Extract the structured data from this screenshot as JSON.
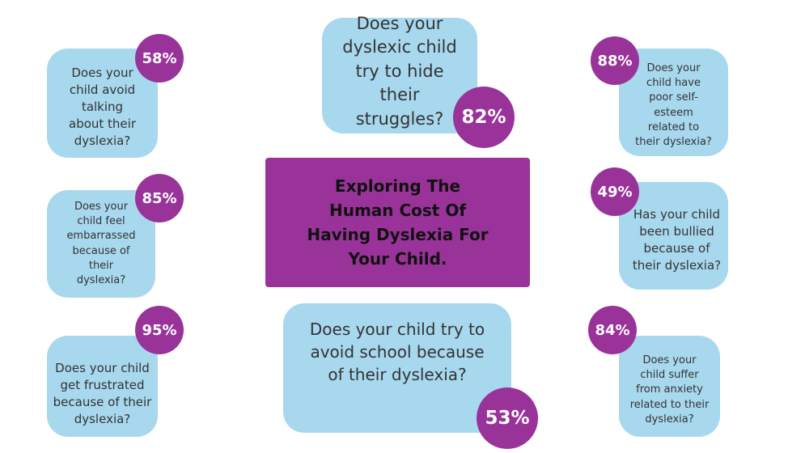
{
  "title": "Exploring The Human Cost Of Having Dyslexia For Your Child.",
  "cards": [
    {
      "question": "Does your child avoid talking about their dyslexia?",
      "percent": "58%"
    },
    {
      "question": "Does your child feel embarrassed because of their dyslexia?",
      "percent": "85%"
    },
    {
      "question": "Does your child get frustrated because of their dyslexia?",
      "percent": "95%"
    },
    {
      "question": "Does your dyslexic child try to hide their struggles?",
      "percent": "82%"
    },
    {
      "question": "Does your child try to avoid school because of their dyslexia?",
      "percent": "53%"
    },
    {
      "question": "Does your child have poor self-esteem related to their dyslexia?",
      "percent": "88%"
    },
    {
      "question": "Has your child been bullied because of their dyslexia?",
      "percent": "49%"
    },
    {
      "question": "Does your child suffer from anxiety related to their dyslexia?",
      "percent": "84%"
    }
  ]
}
